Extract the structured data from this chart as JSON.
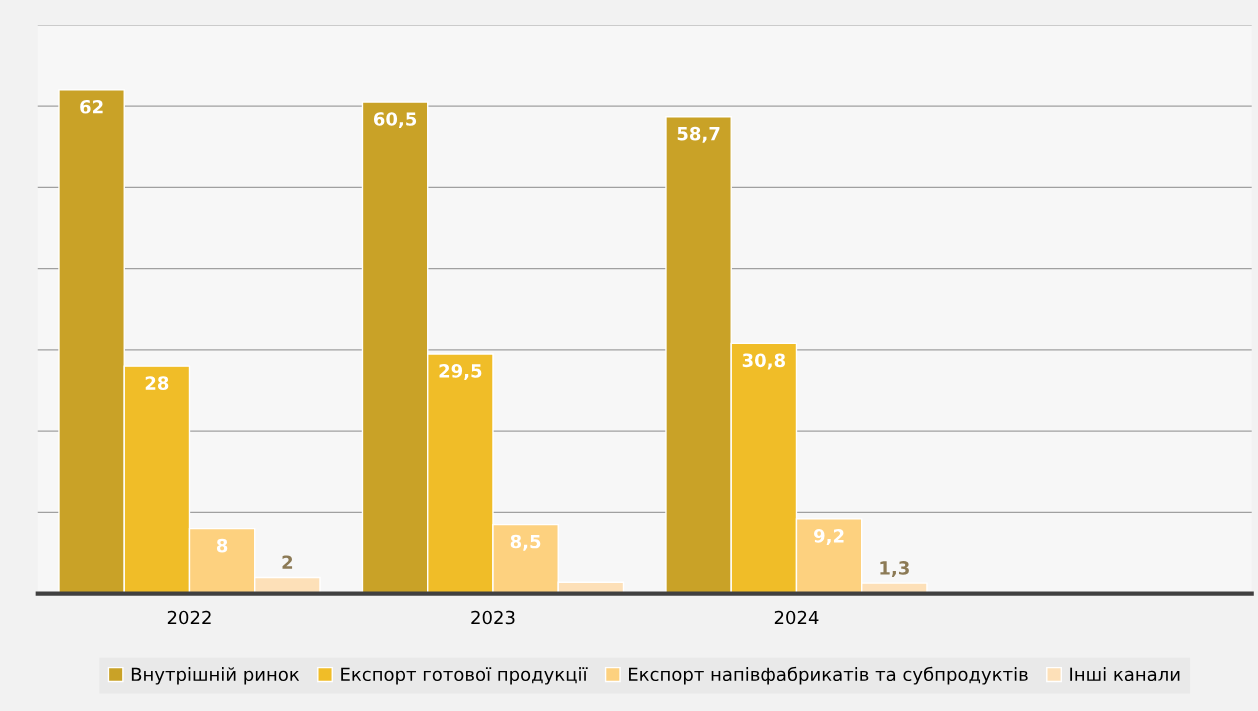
{
  "chart_data": {
    "type": "bar",
    "categories": [
      "2022",
      "2023",
      "2024",
      null
    ],
    "series": [
      {
        "name": "Внутрішній ринок",
        "color": "#c9a227",
        "values": [
          62,
          60.5,
          58.7,
          null
        ],
        "value_labels": [
          "62",
          "60,5",
          "58,7",
          null
        ]
      },
      {
        "name": "Експорт готової продукції",
        "color": "#f0bd28",
        "values": [
          28,
          29.5,
          30.8,
          null
        ],
        "value_labels": [
          "28",
          "29,5",
          "30,8",
          null
        ]
      },
      {
        "name": "Експорт напівфабрикатів та субпродуктів",
        "color": "#fdd17f",
        "values": [
          8,
          8.5,
          9.2,
          null
        ],
        "value_labels": [
          "8",
          "8,5",
          "9,2",
          null
        ]
      },
      {
        "name": "Інші канали",
        "color": "#fde0b8",
        "values": [
          2,
          1.4,
          1.3,
          null
        ],
        "value_labels": [
          "2",
          null,
          "1,3",
          null
        ]
      }
    ],
    "ylim": [
      0,
      70
    ],
    "yticks": [
      {
        "value": 0,
        "label": null
      },
      {
        "value": 10,
        "label": null
      },
      {
        "value": 20,
        "label": null
      },
      {
        "value": 30,
        "label": null
      },
      {
        "value": 40,
        "label": null
      },
      {
        "value": 50,
        "label": null
      },
      {
        "value": 60,
        "label": null
      },
      {
        "value": 70,
        "label": null
      }
    ],
    "tick_labels": "x",
    "grid": "y",
    "legend": "bottom"
  }
}
